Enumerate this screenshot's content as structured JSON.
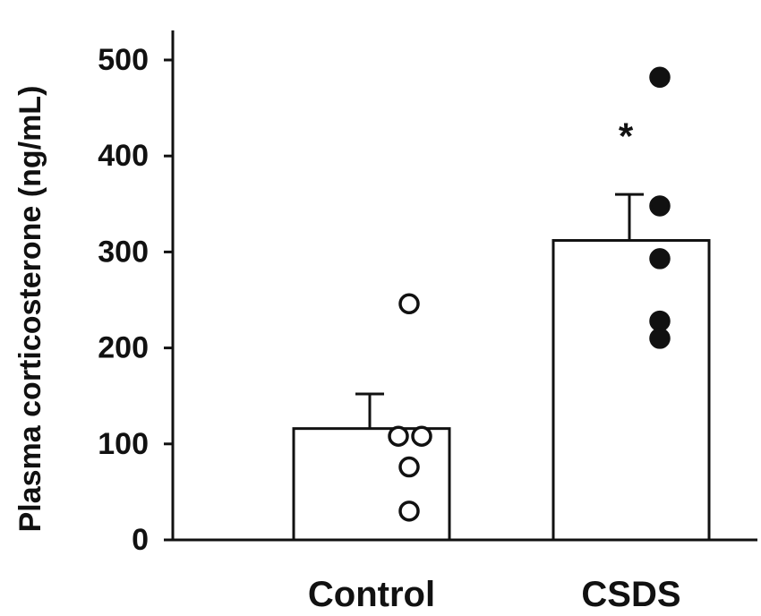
{
  "chart_data": {
    "type": "bar",
    "categories": [
      "Control",
      "CSDS"
    ],
    "values": [
      116,
      312
    ],
    "errors": [
      36,
      48
    ],
    "ylabel": "Plasma corticosterone (ng/mL)",
    "xlabel": "",
    "ylim": [
      0,
      500
    ],
    "yticks": [
      0,
      100,
      200,
      300,
      400,
      500
    ],
    "grid": false,
    "points": [
      {
        "category": "Control",
        "values": [
          246,
          108,
          108,
          76,
          30
        ],
        "style": "open"
      },
      {
        "category": "CSDS",
        "values": [
          482,
          348,
          293,
          228,
          210
        ],
        "style": "filled"
      }
    ],
    "annotations": [
      {
        "category": "CSDS",
        "text": "*"
      }
    ],
    "colors": {
      "bar_fill": "#ffffff",
      "stroke": "#111111",
      "open_marker": "#ffffff",
      "filled_marker": "#111111"
    }
  }
}
